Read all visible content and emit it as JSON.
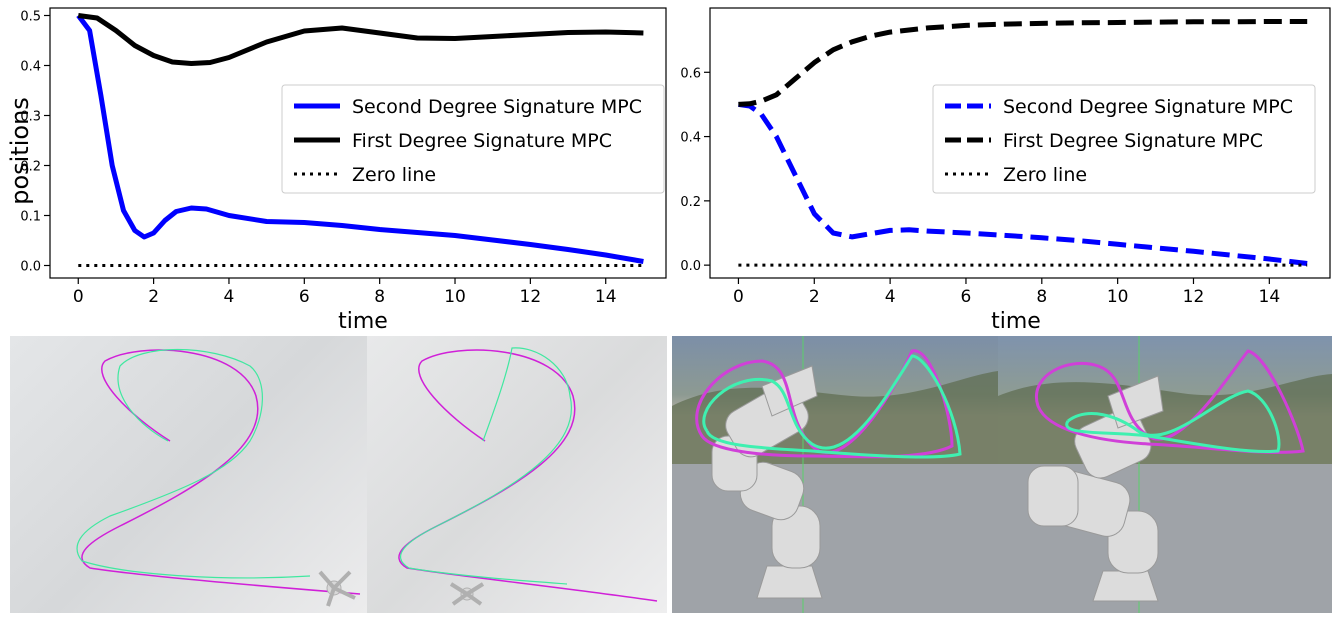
{
  "chart_data": [
    {
      "type": "line",
      "xlabel": "time",
      "ylabel": "positions",
      "xlim": [
        -0.75,
        15.6
      ],
      "ylim": [
        -0.025,
        0.515
      ],
      "xticks": [
        "0",
        "2",
        "4",
        "6",
        "8",
        "10",
        "12",
        "14"
      ],
      "yticks": [
        "0.0",
        "0.1",
        "0.2",
        "0.3",
        "0.4",
        "0.5"
      ],
      "legend_position": "center-right",
      "series": [
        {
          "name": "Second Degree Signature MPC",
          "color": "#0000ff",
          "style": "solid",
          "x": [
            0,
            0.3,
            0.6,
            0.9,
            1.2,
            1.5,
            1.75,
            2.0,
            2.3,
            2.6,
            3.0,
            3.4,
            4.0,
            5.0,
            6.0,
            7.0,
            8.0,
            9.0,
            10.0,
            11.0,
            12.0,
            13.0,
            14.0,
            15.0
          ],
          "y": [
            0.5,
            0.47,
            0.34,
            0.2,
            0.11,
            0.07,
            0.057,
            0.065,
            0.09,
            0.108,
            0.115,
            0.113,
            0.1,
            0.088,
            0.086,
            0.08,
            0.072,
            0.066,
            0.06,
            0.051,
            0.042,
            0.032,
            0.021,
            0.008
          ]
        },
        {
          "name": "First Degree Signature MPC",
          "color": "#000000",
          "style": "solid",
          "x": [
            0,
            0.5,
            1.0,
            1.5,
            2.0,
            2.5,
            3.0,
            3.5,
            4.0,
            5.0,
            6.0,
            7.0,
            8.0,
            9.0,
            10.0,
            11.0,
            12.0,
            13.0,
            14.0,
            15.0
          ],
          "y": [
            0.5,
            0.495,
            0.47,
            0.44,
            0.42,
            0.407,
            0.404,
            0.406,
            0.416,
            0.447,
            0.469,
            0.475,
            0.465,
            0.455,
            0.454,
            0.458,
            0.462,
            0.466,
            0.467,
            0.465
          ]
        },
        {
          "name": "Zero line",
          "color": "#000000",
          "style": "dotted",
          "x": [
            0,
            15
          ],
          "y": [
            0,
            0
          ]
        }
      ]
    },
    {
      "type": "line",
      "xlabel": "time",
      "ylabel": "",
      "xlim": [
        -0.75,
        15.6
      ],
      "ylim": [
        -0.04,
        0.8
      ],
      "xticks": [
        "0",
        "2",
        "4",
        "6",
        "8",
        "10",
        "12",
        "14"
      ],
      "yticks": [
        "0.0",
        "0.2",
        "0.4",
        "0.6"
      ],
      "legend_position": "center-right",
      "series": [
        {
          "name": "Second Degree Signature MPC",
          "color": "#0000ff",
          "style": "dashed",
          "x": [
            0,
            0.3,
            0.6,
            1.0,
            1.5,
            2.0,
            2.5,
            3.0,
            3.5,
            4.0,
            4.5,
            5.0,
            6.0,
            7.0,
            8.0,
            9.0,
            10.0,
            11.0,
            12.0,
            13.0,
            14.0,
            15.0
          ],
          "y": [
            0.5,
            0.495,
            0.47,
            0.4,
            0.28,
            0.16,
            0.1,
            0.088,
            0.098,
            0.108,
            0.11,
            0.106,
            0.1,
            0.093,
            0.085,
            0.076,
            0.065,
            0.054,
            0.043,
            0.031,
            0.019,
            0.005
          ]
        },
        {
          "name": "First Degree Signature MPC",
          "color": "#000000",
          "style": "dashed",
          "x": [
            0,
            0.3,
            0.6,
            1.0,
            1.5,
            2.0,
            2.5,
            3.0,
            3.5,
            4.0,
            5.0,
            6.0,
            7.0,
            8.0,
            9.0,
            10.0,
            11.0,
            12.0,
            13.0,
            14.0,
            15.0
          ],
          "y": [
            0.5,
            0.502,
            0.51,
            0.53,
            0.58,
            0.63,
            0.67,
            0.695,
            0.713,
            0.725,
            0.738,
            0.746,
            0.75,
            0.752,
            0.754,
            0.755,
            0.756,
            0.757,
            0.757,
            0.758,
            0.758
          ]
        },
        {
          "name": "Zero line",
          "color": "#000000",
          "style": "dotted",
          "x": [
            0,
            15
          ],
          "y": [
            0,
            0
          ]
        }
      ]
    }
  ],
  "colors": {
    "target_path": "#d020d8",
    "tracked_path": "#40e8a0",
    "robot": "#d8d8d8"
  }
}
